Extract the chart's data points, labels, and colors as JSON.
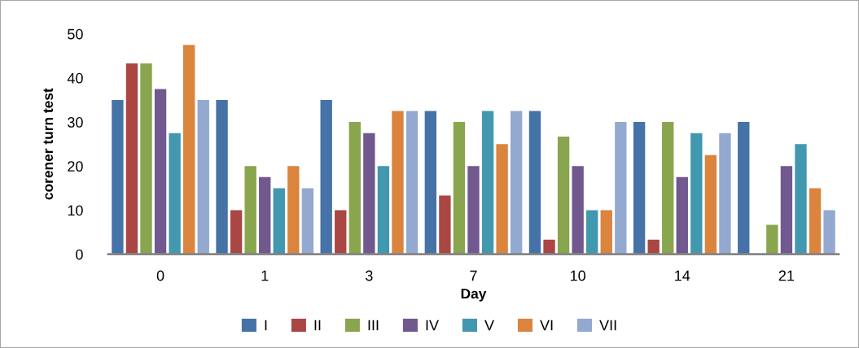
{
  "chart_data": {
    "type": "bar",
    "xlabel": "Day",
    "ylabel": "corener turn test",
    "categories": [
      "0",
      "1",
      "3",
      "7",
      "10",
      "14",
      "21"
    ],
    "series": [
      {
        "name": "I",
        "color": "#4572a7",
        "values": [
          35,
          35,
          35,
          32.5,
          32.5,
          30,
          30
        ]
      },
      {
        "name": "II",
        "color": "#aa4643",
        "values": [
          43.3,
          10,
          10,
          13.3,
          3.3,
          3.3,
          0
        ]
      },
      {
        "name": "III",
        "color": "#89a54e",
        "values": [
          43.3,
          20,
          30,
          30,
          26.7,
          30,
          6.7
        ]
      },
      {
        "name": "IV",
        "color": "#71588f",
        "values": [
          37.5,
          17.5,
          27.5,
          20,
          20,
          17.5,
          20
        ]
      },
      {
        "name": "V",
        "color": "#4198af",
        "values": [
          27.5,
          15,
          20,
          32.5,
          10,
          27.5,
          25
        ]
      },
      {
        "name": "VI",
        "color": "#db843d",
        "values": [
          47.5,
          20,
          32.5,
          25,
          10,
          22.5,
          15
        ]
      },
      {
        "name": "VII",
        "color": "#93a9cf",
        "values": [
          35,
          15,
          32.5,
          32.5,
          30,
          27.5,
          10
        ]
      }
    ],
    "ylim": [
      0,
      50
    ],
    "yticks": [
      0,
      10,
      20,
      30,
      40,
      50
    ],
    "grid": false,
    "legend": "bottom"
  }
}
